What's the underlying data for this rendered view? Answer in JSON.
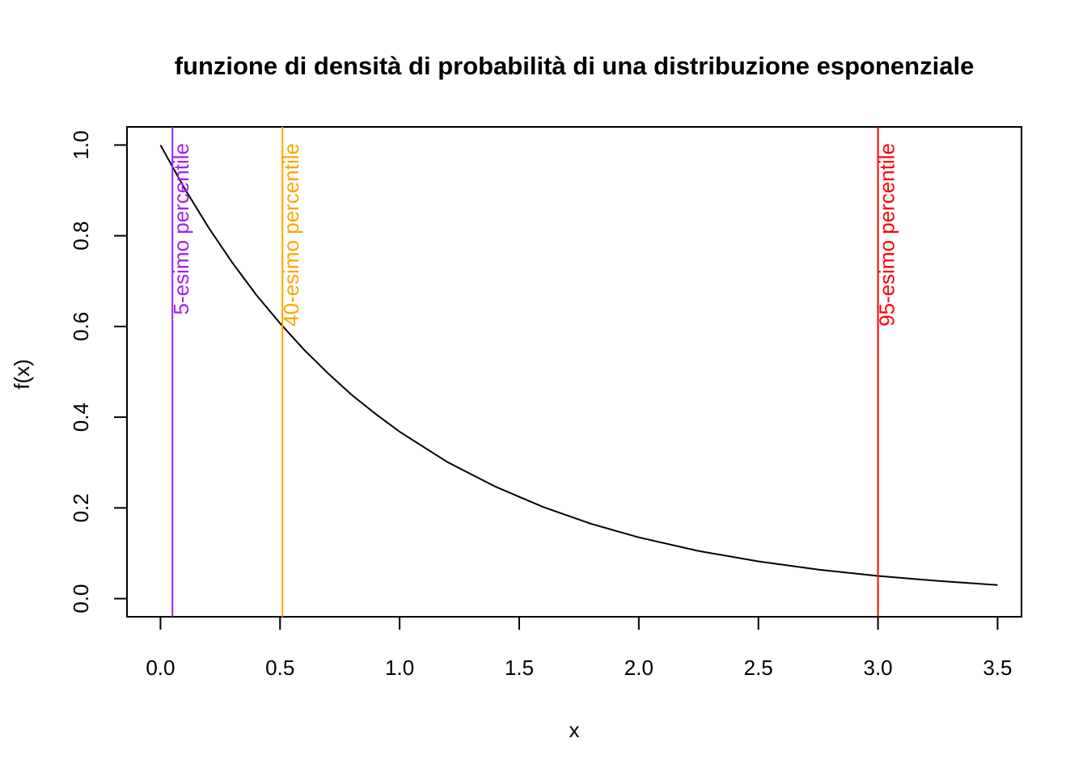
{
  "chart_data": {
    "type": "line",
    "title": "funzione di densità di probabilità di una distribuzione esponenziale",
    "xlabel": "x",
    "ylabel": "f(x)",
    "xlim": [
      -0.14,
      3.6
    ],
    "ylim": [
      -0.04,
      1.04
    ],
    "x_ticks": [
      "0.0",
      "0.5",
      "1.0",
      "1.5",
      "2.0",
      "2.5",
      "3.0",
      "3.5"
    ],
    "y_ticks": [
      "0.0",
      "0.2",
      "0.4",
      "0.6",
      "0.8",
      "1.0"
    ],
    "grid": false,
    "series": [
      {
        "color": "#000000",
        "x": [
          0,
          0.1,
          0.2,
          0.3,
          0.4,
          0.5,
          0.6,
          0.7,
          0.8,
          0.9,
          1.0,
          1.2,
          1.4,
          1.6,
          1.8,
          2.0,
          2.25,
          2.5,
          2.75,
          3.0,
          3.25,
          3.5
        ],
        "y": [
          1.0,
          0.905,
          0.819,
          0.741,
          0.67,
          0.607,
          0.549,
          0.497,
          0.449,
          0.407,
          0.368,
          0.301,
          0.247,
          0.202,
          0.165,
          0.135,
          0.105,
          0.082,
          0.064,
          0.05,
          0.039,
          0.03
        ]
      }
    ],
    "vlines": [
      {
        "x": 0.05,
        "label": "5-esimo percentile",
        "color": "#A020F0"
      },
      {
        "x": 0.51,
        "label": "40-esimo percentile",
        "color": "#FFA500"
      },
      {
        "x": 3.0,
        "label": "95-esimo percentile",
        "color": "#FF0000"
      }
    ]
  }
}
